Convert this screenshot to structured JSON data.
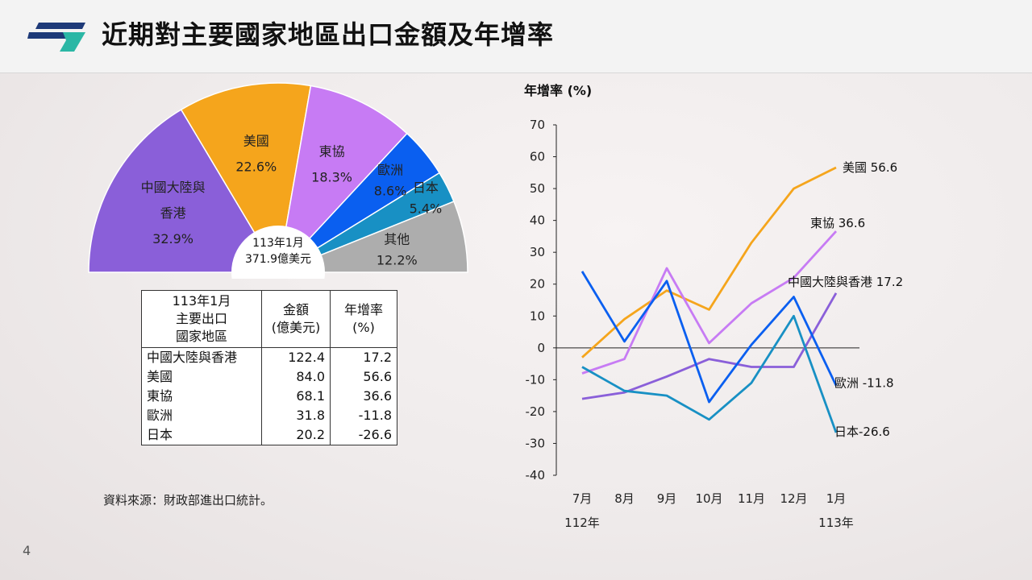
{
  "header": {
    "title": "近期對主要國家地區出口金額及年增率"
  },
  "colors": {
    "china": "#8a5fd9",
    "us": "#f5a51c",
    "asean": "#c77bf4",
    "europe": "#0a5ff0",
    "japan": "#1890c4",
    "other": "#adadad",
    "logo_navy": "#1e3a78",
    "logo_teal": "#2bb7a5"
  },
  "chart_data": [
    {
      "type": "pie",
      "shape": "semicircle",
      "center_text": [
        "113年1月",
        "371.9億美元"
      ],
      "slices": [
        {
          "name": "中國大陸與香港",
          "label_lines": [
            "中國大陸與",
            "香港"
          ],
          "pct": 32.9,
          "pct_label": "32.9%",
          "color": "#8a5fd9"
        },
        {
          "name": "美國",
          "label_lines": [
            "美國"
          ],
          "pct": 22.6,
          "pct_label": "22.6%",
          "color": "#f5a51c"
        },
        {
          "name": "東協",
          "label_lines": [
            "東協"
          ],
          "pct": 18.3,
          "pct_label": "18.3%",
          "color": "#c77bf4"
        },
        {
          "name": "歐洲",
          "label_lines": [
            "歐洲"
          ],
          "pct": 8.6,
          "pct_label": "8.6%",
          "color": "#0a5ff0"
        },
        {
          "name": "日本",
          "label_lines": [
            "日本"
          ],
          "pct": 5.4,
          "pct_label": "5.4%",
          "color": "#1890c4"
        },
        {
          "name": "其他",
          "label_lines": [
            "其他"
          ],
          "pct": 12.2,
          "pct_label": "12.2%",
          "color": "#adadad"
        }
      ]
    },
    {
      "type": "table",
      "header": {
        "col1": [
          "113年1月",
          "主要出口",
          "國家地區"
        ],
        "col2": [
          "金額",
          "(億美元)"
        ],
        "col3": [
          "年增率",
          "(%)"
        ]
      },
      "rows": [
        {
          "region": "中國大陸與香港",
          "amount": "122.4",
          "growth": "17.2"
        },
        {
          "region": "美國",
          "amount": "84.0",
          "growth": "56.6"
        },
        {
          "region": "東協",
          "amount": "68.1",
          "growth": "36.6"
        },
        {
          "region": "歐洲",
          "amount": "31.8",
          "growth": "-11.8"
        },
        {
          "region": "日本",
          "amount": "20.2",
          "growth": "-26.6"
        }
      ]
    },
    {
      "type": "line",
      "ylabel": "年增率 (%)",
      "ylim": [
        -40,
        70
      ],
      "yticks": [
        70,
        60,
        50,
        40,
        30,
        20,
        10,
        0,
        -10,
        -20,
        -30,
        -40
      ],
      "categories": [
        "7月",
        "8月",
        "9月",
        "10月",
        "11月",
        "12月",
        "1月"
      ],
      "year_labels": [
        {
          "text": "112年",
          "at": 0
        },
        {
          "text": "113年",
          "at": 6
        }
      ],
      "grid": false,
      "series": [
        {
          "name": "美國",
          "end_label": "美國 56.6",
          "color": "#f5a51c",
          "values": [
            -3.0,
            9.0,
            18.0,
            12.0,
            33.0,
            50.0,
            56.6
          ]
        },
        {
          "name": "東協",
          "end_label": "東協 36.6",
          "color": "#c77bf4",
          "values": [
            -8.0,
            -3.5,
            25.0,
            1.5,
            14.0,
            22.0,
            36.6
          ]
        },
        {
          "name": "中國大陸與香港",
          "end_label": "中國大陸與香港 17.2",
          "color": "#8a5fd9",
          "values": [
            -16.0,
            -14.0,
            -9.0,
            -3.5,
            -6.0,
            -6.0,
            17.2
          ]
        },
        {
          "name": "歐洲",
          "end_label": "歐洲 -11.8",
          "color": "#0a5ff0",
          "values": [
            24.0,
            2.0,
            21.0,
            -17.0,
            1.0,
            16.0,
            -11.8
          ]
        },
        {
          "name": "日本",
          "end_label": "日本-26.6",
          "color": "#1890c4",
          "values": [
            -6.0,
            -13.5,
            -15.0,
            -22.5,
            -11.0,
            10.0,
            -26.6
          ]
        }
      ]
    }
  ],
  "footer": {
    "source": "資料來源：財政部進出口統計。",
    "page_number": "4"
  }
}
